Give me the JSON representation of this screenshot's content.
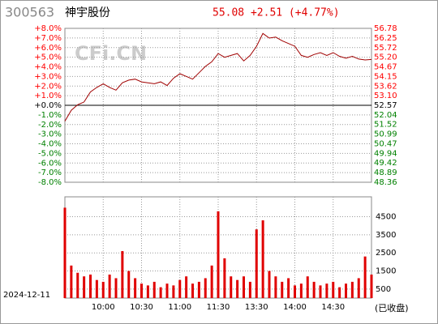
{
  "header": {
    "code": "300563",
    "name": "神宇股份",
    "quote": "55.08 +2.51 (+4.77%)",
    "watermark": "CFi.CN"
  },
  "footer": {
    "date": "2024-12-11",
    "status": "(已收盘)"
  },
  "chart_data": [
    {
      "type": "line",
      "color": "#a00000",
      "up_color": "#ff0000",
      "down_color": "#008000",
      "neutral_color": "#000000",
      "grid": true,
      "x": [
        0,
        5,
        10,
        15,
        20,
        25,
        30,
        35,
        40,
        45,
        50,
        55,
        60,
        65,
        70,
        75,
        80,
        85,
        90,
        95,
        100,
        105,
        110,
        115,
        120,
        125,
        130,
        135,
        140,
        145,
        150,
        155,
        160,
        165,
        170,
        175,
        180,
        185,
        190,
        195,
        200,
        205,
        210,
        215,
        220,
        225,
        230,
        235,
        240
      ],
      "values": [
        51.7,
        52.3,
        52.6,
        52.75,
        53.3,
        53.55,
        53.75,
        53.55,
        53.4,
        53.8,
        53.95,
        54.0,
        53.85,
        53.8,
        53.75,
        53.85,
        53.65,
        54.05,
        54.3,
        54.15,
        54.0,
        54.35,
        54.7,
        54.95,
        55.4,
        55.2,
        55.3,
        55.4,
        55.0,
        55.3,
        55.8,
        56.5,
        56.25,
        56.3,
        56.1,
        55.95,
        55.8,
        55.3,
        55.2,
        55.35,
        55.45,
        55.3,
        55.45,
        55.25,
        55.15,
        55.25,
        55.1,
        55.05,
        55.08
      ],
      "xlim": [
        0,
        240
      ],
      "ylim": [
        48.36,
        56.78
      ],
      "yticks": [
        56.78,
        56.25,
        55.72,
        {
          "value": 55.2,
          "label": "55.20"
        },
        54.67,
        54.15,
        53.62,
        {
          "value": 53.1,
          "label": "53.10"
        },
        52.57,
        52.04,
        51.52,
        50.99,
        50.47,
        49.94,
        49.42,
        48.89,
        48.36
      ],
      "y2lim": [
        -8,
        8
      ],
      "y2ticks": [
        {
          "value": 8,
          "label": "+8.0%"
        },
        {
          "value": 7,
          "label": "+7.0%"
        },
        {
          "value": 6,
          "label": "+6.0%"
        },
        {
          "value": 5,
          "label": "+5.0%"
        },
        {
          "value": 4,
          "label": "+4.0%"
        },
        {
          "value": 3,
          "label": "+3.0%"
        },
        {
          "value": 2,
          "label": "+2.0%"
        },
        {
          "value": 1,
          "label": "+1.0%"
        },
        {
          "value": 0,
          "label": "+0.0%"
        },
        {
          "value": -1,
          "label": "-1.0%"
        },
        {
          "value": -2,
          "label": "-2.0%"
        },
        {
          "value": -3,
          "label": "-3.0%"
        },
        {
          "value": -4,
          "label": "-4.0%"
        },
        {
          "value": -5,
          "label": "-5.0%"
        },
        {
          "value": -6,
          "label": "-6.0%"
        },
        {
          "value": -7,
          "label": "-7.0%"
        },
        {
          "value": -8,
          "label": "-8.0%"
        }
      ]
    },
    {
      "type": "bar",
      "color": "#e00000",
      "grid": true,
      "x": [
        0,
        5,
        10,
        15,
        20,
        25,
        30,
        35,
        40,
        45,
        50,
        55,
        60,
        65,
        70,
        75,
        80,
        85,
        90,
        95,
        100,
        105,
        110,
        115,
        120,
        125,
        130,
        135,
        140,
        145,
        150,
        155,
        160,
        165,
        170,
        175,
        180,
        185,
        190,
        195,
        200,
        205,
        210,
        215,
        220,
        225,
        230,
        235,
        240
      ],
      "values": [
        5000,
        1800,
        1400,
        1200,
        1300,
        1000,
        900,
        1300,
        1100,
        2600,
        1500,
        1100,
        800,
        700,
        900,
        600,
        800,
        700,
        1000,
        1200,
        800,
        900,
        1100,
        1800,
        4800,
        2200,
        1200,
        1000,
        1200,
        900,
        3800,
        4300,
        1500,
        1200,
        900,
        1100,
        700,
        800,
        1200,
        900,
        700,
        800,
        900,
        600,
        800,
        900,
        1100,
        2300,
        1300
      ],
      "xlim": [
        0,
        240
      ],
      "xticks": [
        {
          "value": 30,
          "label": "10:00"
        },
        {
          "value": 60,
          "label": "10:30"
        },
        {
          "value": 90,
          "label": "11:00"
        },
        {
          "value": 120,
          "label": "11:30"
        },
        {
          "value": 150,
          "label": "13:30"
        },
        {
          "value": 180,
          "label": "14:00"
        },
        {
          "value": 210,
          "label": "14:30"
        }
      ],
      "ylim": [
        0,
        5600
      ],
      "yticks": [
        500,
        1500,
        2500,
        3500,
        4500
      ]
    }
  ]
}
